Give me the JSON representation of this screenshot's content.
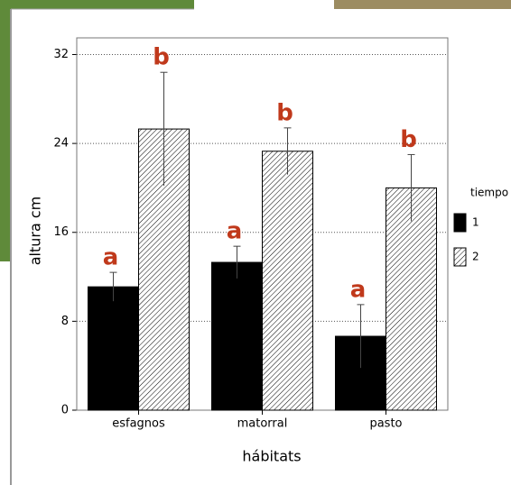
{
  "chart_data": {
    "type": "bar",
    "x_label": "hábitats",
    "y_label": "altura cm",
    "legend_title": "tiempo",
    "categories": [
      "esfagnos",
      "matorral",
      "pasto"
    ],
    "series": [
      {
        "name": "1",
        "color": "#000000",
        "fill": "solid",
        "values": [
          11.1,
          13.3,
          6.65
        ],
        "errors": [
          1.3,
          1.45,
          2.85
        ],
        "letters": [
          "a",
          "a",
          "a"
        ]
      },
      {
        "name": "2",
        "color": "#000000",
        "fill": "hatch",
        "values": [
          25.3,
          23.3,
          20.0
        ],
        "errors": [
          5.1,
          2.1,
          3.0
        ],
        "letters": [
          "b",
          "b",
          "b"
        ]
      }
    ],
    "ylim": [
      0,
      33.5
    ],
    "yticks": [
      0,
      8,
      16,
      24,
      32
    ],
    "grid": true
  }
}
